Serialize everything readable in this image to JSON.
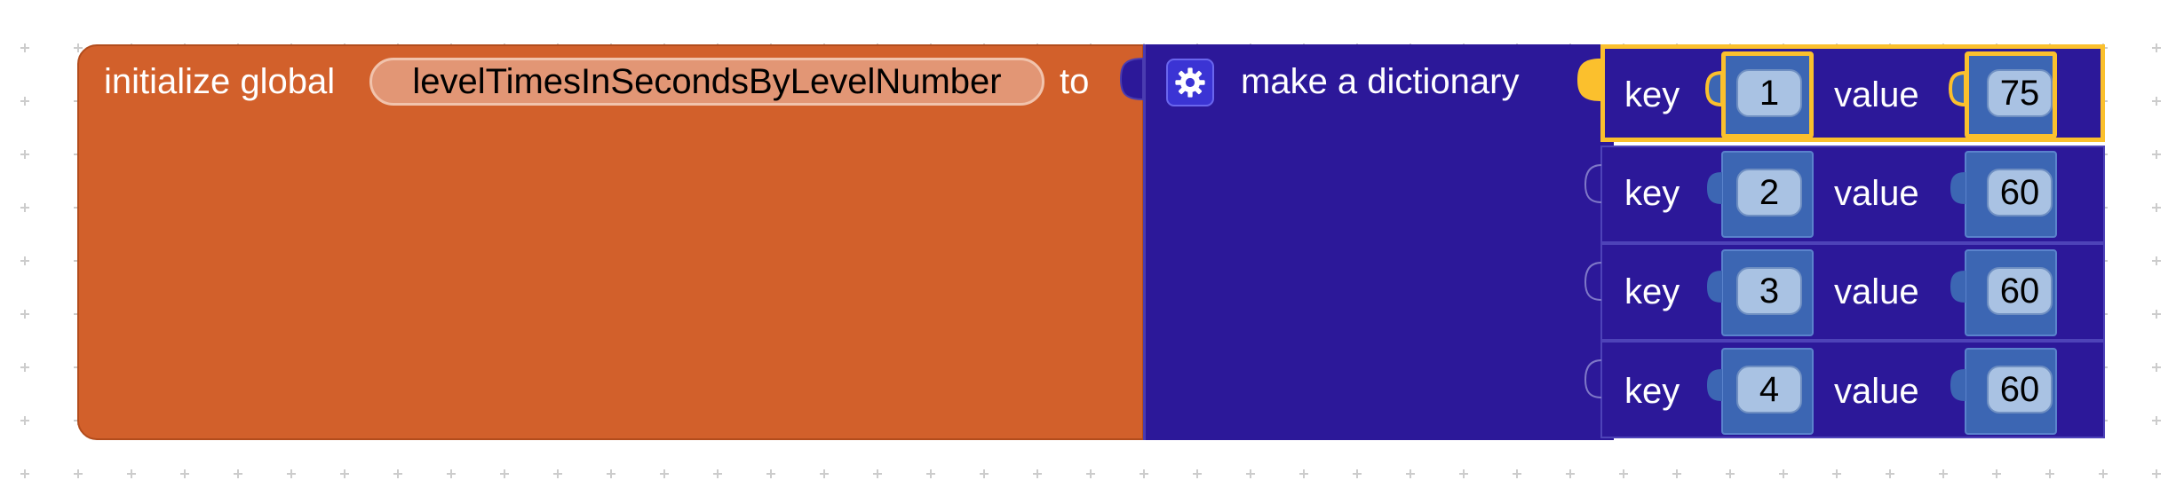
{
  "workspace": {
    "background_color": "#ffffff",
    "grid_color": "#cccccc"
  },
  "init_block": {
    "label_prefix": "initialize global",
    "variable_name": "levelTimesInSecondsByLevelNumber",
    "label_suffix": "to",
    "color": "#d2602b"
  },
  "dict_block": {
    "label": "make a dictionary",
    "mutator_icon": "gear-icon",
    "color": "#2c1899"
  },
  "pair_labels": {
    "key": "key",
    "value": "value"
  },
  "pairs": [
    {
      "key": "1",
      "value": "75",
      "selected": true
    },
    {
      "key": "2",
      "value": "60",
      "selected": false
    },
    {
      "key": "3",
      "value": "60",
      "selected": false
    },
    {
      "key": "4",
      "value": "60",
      "selected": false
    }
  ],
  "number_block_color": "#3c66b3",
  "selection_color": "#fbc02d"
}
